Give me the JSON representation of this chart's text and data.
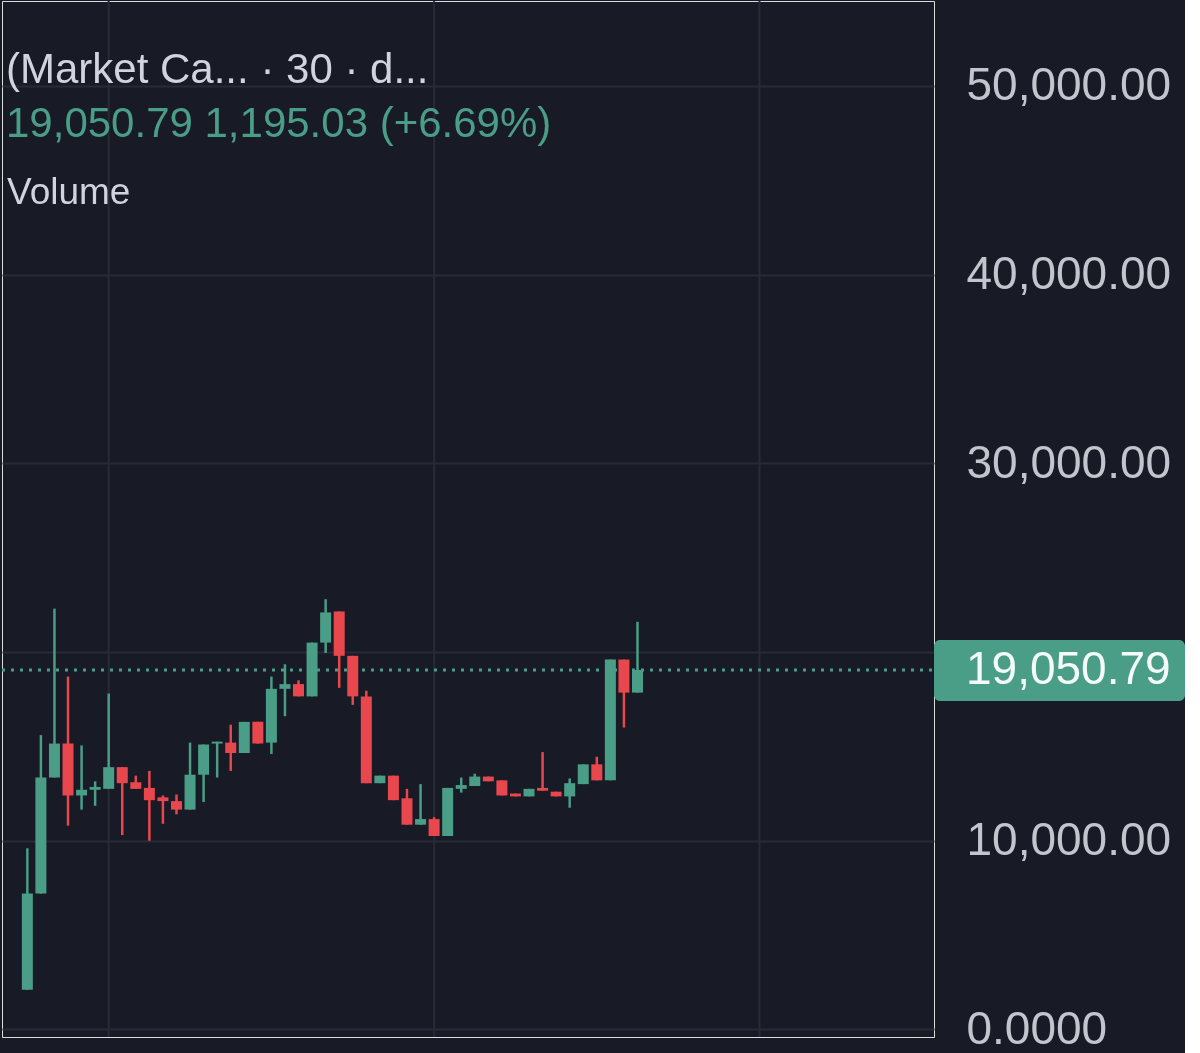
{
  "chart_data": {
    "type": "candlestick",
    "title": "(Market Ca... · 30 · d...",
    "subtitle": "19,050.79 1,195.03 (+6.69%)",
    "annotations": [
      "Volume"
    ],
    "categories": [
      null,
      null,
      null,
      null,
      null,
      null,
      null,
      null,
      null,
      null,
      null,
      null,
      null,
      null,
      null,
      null,
      null,
      null,
      null,
      null,
      null,
      null,
      null,
      null,
      null,
      null,
      null,
      null,
      null,
      null,
      null,
      null,
      null,
      null,
      null,
      null,
      null,
      null,
      null,
      null,
      null,
      null,
      null,
      null,
      null,
      null,
      null,
      null,
      null,
      null,
      null,
      null,
      null,
      null,
      null,
      null,
      null,
      null,
      null,
      null,
      null,
      null,
      null,
      null,
      null,
      null,
      null,
      null
    ],
    "ohlc": [
      null,
      [
        2100,
        9600,
        2100,
        7200
      ],
      [
        7200,
        15600,
        7200,
        13350
      ],
      [
        13350,
        22300,
        13350,
        15150
      ],
      [
        15150,
        18700,
        10800,
        12400
      ],
      [
        12400,
        15050,
        11650,
        12700
      ],
      [
        12700,
        13150,
        11850,
        12850
      ],
      [
        12750,
        17800,
        12750,
        13900
      ],
      [
        13900,
        13900,
        10300,
        13050
      ],
      [
        13100,
        13450,
        12750,
        12750
      ],
      [
        12800,
        13700,
        10000,
        12150
      ],
      [
        12300,
        12400,
        10900,
        12100
      ],
      [
        12100,
        12450,
        11400,
        11650
      ],
      [
        11650,
        15200,
        11650,
        13500
      ],
      [
        13500,
        15100,
        12050,
        15100
      ],
      [
        15150,
        15250,
        13350,
        15250
      ],
      [
        15200,
        16150,
        13700,
        14650
      ],
      [
        14650,
        16300,
        14650,
        16300
      ],
      [
        16300,
        16300,
        15150,
        15150
      ],
      [
        15200,
        18700,
        14600,
        18050
      ],
      [
        18050,
        19350,
        16600,
        18300
      ],
      [
        18300,
        18500,
        17650,
        17650
      ],
      [
        17650,
        20500,
        17650,
        20500
      ],
      [
        20500,
        22800,
        19950,
        22100
      ],
      [
        22150,
        22150,
        18100,
        19800
      ],
      [
        19800,
        19800,
        17200,
        17650
      ],
      [
        17650,
        17950,
        13050,
        13050
      ],
      [
        13050,
        13450,
        13050,
        13450
      ],
      [
        13450,
        13450,
        12150,
        12150
      ],
      [
        12250,
        12750,
        10850,
        10850
      ],
      [
        10850,
        13000,
        10850,
        11150
      ],
      [
        11150,
        11250,
        10250,
        10250
      ],
      [
        10250,
        12800,
        10250,
        12800
      ],
      [
        12750,
        13350,
        12550,
        12950
      ],
      [
        12900,
        13550,
        12900,
        13400
      ],
      [
        13400,
        13400,
        13150,
        13150
      ],
      [
        13200,
        13200,
        12400,
        12400
      ],
      [
        12500,
        12500,
        12350,
        12350
      ],
      [
        12350,
        12750,
        12350,
        12750
      ],
      [
        12800,
        14700,
        12650,
        12650
      ],
      [
        12600,
        12600,
        12350,
        12350
      ],
      [
        12350,
        13300,
        11750,
        13050
      ],
      [
        13000,
        14050,
        13000,
        14050
      ],
      [
        14050,
        14450,
        13200,
        13200
      ],
      [
        13200,
        19600,
        13200,
        19600
      ],
      [
        19600,
        19600,
        16000,
        17850
      ],
      [
        17850,
        21600,
        17850,
        19050.79
      ],
      null,
      null,
      null,
      null,
      null,
      null,
      null,
      null,
      null,
      null,
      null,
      null,
      null,
      null,
      null,
      null,
      null,
      null,
      null,
      null,
      null
    ],
    "colors": [
      null,
      "#4a9d87",
      "#4a9d87",
      "#4a9d87",
      "#e8474e",
      "#4a9d87",
      "#4a9d87",
      "#4a9d87",
      "#e8474e",
      "#e8474e",
      "#e8474e",
      "#e8474e",
      "#e8474e",
      "#4a9d87",
      "#4a9d87",
      "#4a9d87",
      "#e8474e",
      "#4a9d87",
      "#e8474e",
      "#4a9d87",
      "#4a9d87",
      "#e8474e",
      "#4a9d87",
      "#4a9d87",
      "#e8474e",
      "#e8474e",
      "#e8474e",
      "#4a9d87",
      "#e8474e",
      "#e8474e",
      "#4a9d87",
      "#e8474e",
      "#4a9d87",
      "#4a9d87",
      "#4a9d87",
      "#e8474e",
      "#e8474e",
      "#e8474e",
      "#4a9d87",
      "#e8474e",
      "#e8474e",
      "#4a9d87",
      "#4a9d87",
      "#e8474e",
      "#4a9d87",
      "#e8474e",
      "#4a9d87",
      null,
      null,
      null,
      null,
      null,
      null,
      null,
      null,
      null,
      null,
      null,
      null,
      null,
      null,
      null,
      null,
      null,
      null,
      null,
      null,
      null
    ],
    "ylim": [
      -400,
      54500
    ],
    "yticks": [
      {
        "value": 0,
        "label": "0.0000"
      },
      {
        "value": 10000,
        "label": "10,000.00"
      },
      {
        "value": 20000,
        "label": null
      },
      {
        "value": 30000,
        "label": "30,000.00"
      },
      {
        "value": 40000,
        "label": "40,000.00"
      },
      {
        "value": 50000,
        "label": "50,000.00"
      }
    ],
    "grid": true,
    "tick_labels": "y",
    "ref_lines": [
      {
        "axis": "y",
        "value": 19050.79,
        "label": "19,050.79",
        "color": "#4a9d87",
        "line_style": "dotted"
      }
    ]
  }
}
